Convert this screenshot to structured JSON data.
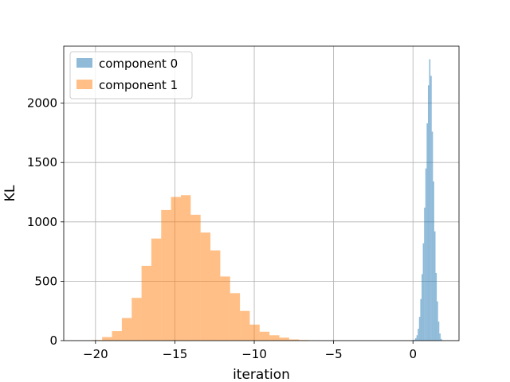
{
  "chart_data": {
    "type": "bar",
    "title": "",
    "xlabel": "iteration",
    "ylabel": "KL",
    "xlim": [
      -22.0,
      2.9
    ],
    "ylim": [
      0,
      2480
    ],
    "xticks": [
      -20,
      -15,
      -10,
      -5,
      0
    ],
    "xtick_labels": [
      "−20",
      "−15",
      "−10",
      "−5",
      "0"
    ],
    "yticks": [
      0,
      500,
      1000,
      1500,
      2000
    ],
    "ytick_labels": [
      "0",
      "500",
      "1000",
      "1500",
      "2000"
    ],
    "grid": true,
    "legend_position": "top-left",
    "series": [
      {
        "name": "component 0",
        "color": "#1f77b4",
        "opacity": 0.5,
        "bin_start": -0.1,
        "bin_width": 0.08,
        "values": [
          3,
          2,
          8,
          20,
          45,
          100,
          200,
          350,
          560,
          820,
          1120,
          1450,
          1830,
          2150,
          2370,
          2230,
          1760,
          1340,
          920,
          570,
          330,
          160,
          60,
          15,
          3
        ]
      },
      {
        "name": "component 1",
        "color": "#ff7f0e",
        "opacity": 0.5,
        "bin_start": -20.2,
        "bin_width": 0.62,
        "values": [
          5,
          30,
          80,
          190,
          360,
          630,
          860,
          1100,
          1210,
          1225,
          1060,
          910,
          760,
          540,
          400,
          250,
          135,
          75,
          45,
          25,
          10,
          5,
          2
        ]
      }
    ]
  }
}
